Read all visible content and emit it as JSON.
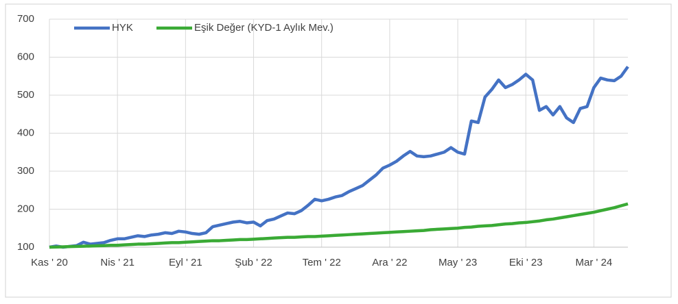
{
  "chart_data": {
    "type": "line",
    "x": [
      0,
      0.5,
      1,
      1.5,
      2,
      2.5,
      3,
      3.5,
      4,
      4.5,
      5,
      5.5,
      6,
      6.5,
      7,
      7.5,
      8,
      8.5,
      9,
      9.5,
      10,
      10.5,
      11,
      11.5,
      12,
      12.5,
      13,
      13.5,
      14,
      14.5,
      15,
      15.5,
      16,
      16.5,
      17,
      17.5,
      18,
      18.5,
      19,
      19.5,
      20,
      20.5,
      21,
      21.5,
      22,
      22.5,
      23,
      23.5,
      24,
      24.5,
      25,
      25.5,
      26,
      26.5,
      27,
      27.5,
      28,
      28.5,
      29,
      29.5,
      30,
      30.5,
      31,
      31.5,
      32,
      32.5,
      33,
      33.5,
      34,
      34.5,
      35,
      35.5,
      36,
      36.5,
      37,
      37.5,
      38,
      38.5,
      39,
      39.5,
      40,
      40.5,
      41,
      41.5,
      42,
      42.5
    ],
    "series": [
      {
        "name": "HYK",
        "color": "#4472c4",
        "values": [
          100,
          103,
          100,
          102,
          104,
          113,
          108,
          110,
          112,
          118,
          122,
          122,
          126,
          130,
          128,
          132,
          134,
          138,
          136,
          142,
          140,
          136,
          134,
          138,
          154,
          158,
          162,
          166,
          168,
          164,
          166,
          156,
          170,
          174,
          182,
          190,
          188,
          196,
          210,
          226,
          222,
          226,
          232,
          236,
          246,
          254,
          262,
          276,
          290,
          308,
          316,
          326,
          340,
          352,
          340,
          338,
          340,
          345,
          350,
          362,
          350,
          345,
          432,
          428,
          495,
          515,
          540,
          520,
          528,
          540,
          555,
          540,
          460,
          470,
          448,
          470,
          440,
          428,
          465,
          470,
          520,
          545,
          540,
          538,
          550,
          575
        ]
      },
      {
        "name": "Eşik Değer (KYD-1 Aylık Mev.)",
        "color": "#3aaa35",
        "values": [
          100,
          100.5,
          101,
          101.5,
          102,
          102.5,
          103,
          103.5,
          104,
          105,
          105,
          106,
          107,
          108,
          108,
          109,
          110,
          111,
          112,
          112,
          113,
          114,
          115,
          116,
          117,
          117,
          118,
          119,
          120,
          120,
          121,
          122,
          123,
          124,
          125,
          126,
          126,
          127,
          128,
          128,
          129,
          130,
          131,
          132,
          133,
          134,
          135,
          136,
          137,
          138,
          139,
          140,
          141,
          142,
          143,
          144,
          146,
          147,
          148,
          149,
          150,
          152,
          153,
          155,
          156,
          157,
          159,
          161,
          162,
          164,
          165,
          167,
          169,
          172,
          174,
          177,
          180,
          183,
          186,
          189,
          192,
          196,
          200,
          204,
          209,
          214
        ]
      }
    ],
    "xlim": [
      0,
      42.5
    ],
    "xticks": [
      {
        "value": 0,
        "label": "Kas ' 20"
      },
      {
        "value": 5,
        "label": "Nis ' 21"
      },
      {
        "value": 10,
        "label": "Eyl ' 21"
      },
      {
        "value": 15,
        "label": "Şub ' 22"
      },
      {
        "value": 20,
        "label": "Tem ' 22"
      },
      {
        "value": 25,
        "label": "Ara ' 22"
      },
      {
        "value": 30,
        "label": "May ' 23"
      },
      {
        "value": 35,
        "label": "Eki ' 23"
      },
      {
        "value": 40,
        "label": "Mar ' 24"
      }
    ],
    "ylim": [
      100,
      700
    ],
    "yticks": [
      100,
      200,
      300,
      400,
      500,
      600,
      700
    ],
    "grid": true,
    "legend": "top-left"
  }
}
